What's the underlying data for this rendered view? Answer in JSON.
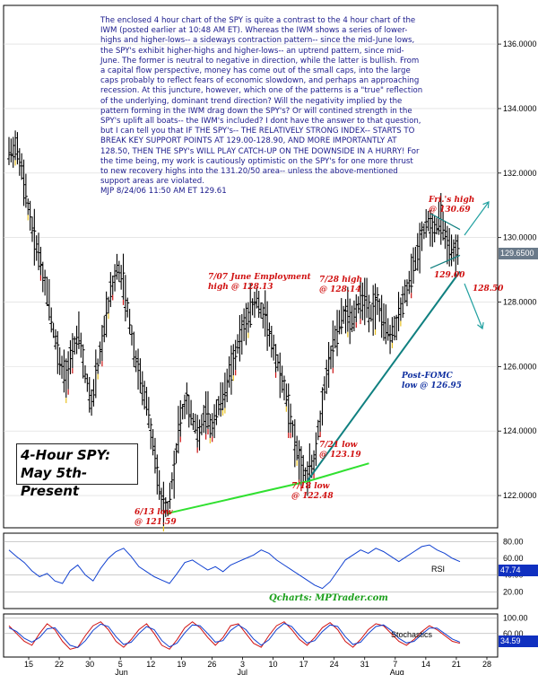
{
  "commentary": "The enclosed 4 hour chart of the SPY is quite a contrast to the 4 hour chart of the IWM (posted earlier at 10:48 AM ET). Whereas the IWM shows a series of lower-highs and higher-lows-- a sideways contraction pattern-- since the mid-June lows, the SPY's exhibit higher-highs and higher-lows-- an uptrend pattern, since mid-June. The former is neutral to negative in direction, while the latter is bullish. From a capital flow perspective, money has come out of the small caps, into the large caps probably to reflect fears of economic slowdown, and perhaps an approaching recession. At this juncture, however, which one of the patterns is a \"true\" reflection of the underlying, dominant trend direction? Will the negativity implied by the pattern forming in the IWM drag down the SPY's? Or will contined strength in the SPY's uplift all boats-- the IWM's included? I dont have the answer to that question, but I can tell you that IF THE SPY's-- THE RELATIVELY STRONG INDEX-- STARTS TO BREAK KEY SUPPORT POINTS AT 129.00-128.90, AND MORE IMPORTANTLY AT 128.50, THEN THE SPY's WILL PLAY CATCH-UP ON THE DOWNSIDE IN A HURRY! For the time being, my work is cautiously optimistic on the SPY's for one more thrust to new recovery highs into the 131.20/50 area-- unless the above-mentioned support areas are violated.",
  "signature": "MJP  8/24/06  11:50 AM ET  129.61",
  "title_line1": "4-Hour SPY:",
  "title_line2": "May 5th-Present",
  "watermark": "Qcharts: MPTrader.com",
  "annotations": {
    "june13": [
      "6/13 low",
      "@ 121.59"
    ],
    "june_employment": [
      "7/07 June Employment",
      "high @ 128.13"
    ],
    "july28": [
      "7/28 high",
      "@ 128.14"
    ],
    "july21": [
      "7/21 low",
      "@ 123.19"
    ],
    "july18": [
      "7/18 low",
      "@ 122.48"
    ],
    "fomc": [
      "Post-FOMC",
      "low @ 126.95"
    ],
    "fri_high": [
      "Fri.'s high",
      "@ 130.69"
    ],
    "support1": "129.00",
    "support2": "128.50",
    "rsi_label": "RSI",
    "stoch_label": "Stochastics"
  },
  "colors": {
    "candle": "#000000",
    "down_tick": "#cc1010",
    "up_tick": "#e8c020",
    "trend_green": "#30e030",
    "trend_teal": "#108080",
    "arrow": "#20a0a0",
    "rsi": "#1040d0",
    "stoch_fast": "#d01010",
    "stoch_slow": "#1040d0",
    "last_price_bg": "#6a7a8a",
    "last_value_bg": "#1030c0"
  },
  "chart_data": {
    "type": "line",
    "price_axis": {
      "ylim": [
        121.0,
        137.2
      ],
      "ticks": [
        "136.0000",
        "134.0000",
        "132.0000",
        "130.0000",
        "128.0000",
        "126.0000",
        "124.0000",
        "122.0000"
      ],
      "tick_values": [
        136,
        134,
        132,
        130,
        128,
        126,
        124,
        122
      ],
      "last_price": "129.6500"
    },
    "x_axis": {
      "labels": [
        "15",
        "22",
        "30",
        "5",
        "12",
        "19",
        "26",
        "3",
        "10",
        "17",
        "24",
        "31",
        "7",
        "14",
        "21",
        "28"
      ],
      "month_labels": [
        "Jun",
        "Jul",
        "Aug"
      ]
    },
    "price_path": {
      "name": "SPY",
      "points": [
        [
          0,
          132.6
        ],
        [
          3,
          132.8
        ],
        [
          6,
          132.3
        ],
        [
          9,
          131.0
        ],
        [
          12,
          130.0
        ],
        [
          15,
          129.2
        ],
        [
          18,
          128.3
        ],
        [
          21,
          127.1
        ],
        [
          24,
          126.3
        ],
        [
          27,
          125.6
        ],
        [
          30,
          126.5
        ],
        [
          33,
          127.0
        ],
        [
          36,
          125.8
        ],
        [
          39,
          124.9
        ],
        [
          42,
          126.0
        ],
        [
          45,
          127.2
        ],
        [
          48,
          128.3
        ],
        [
          51,
          129.1
        ],
        [
          54,
          128.6
        ],
        [
          57,
          127.4
        ],
        [
          60,
          126.2
        ],
        [
          63,
          125.4
        ],
        [
          66,
          124.5
        ],
        [
          69,
          123.2
        ],
        [
          72,
          122.0
        ],
        [
          75,
          121.6
        ],
        [
          78,
          122.8
        ],
        [
          81,
          124.4
        ],
        [
          84,
          125.0
        ],
        [
          87,
          124.3
        ],
        [
          90,
          123.9
        ],
        [
          93,
          124.6
        ],
        [
          96,
          124.1
        ],
        [
          99,
          124.8
        ],
        [
          102,
          125.3
        ],
        [
          105,
          125.9
        ],
        [
          108,
          126.7
        ],
        [
          111,
          127.2
        ],
        [
          114,
          127.7
        ],
        [
          117,
          128.1
        ],
        [
          120,
          127.6
        ],
        [
          123,
          127.1
        ],
        [
          126,
          126.3
        ],
        [
          129,
          125.6
        ],
        [
          132,
          124.8
        ],
        [
          135,
          123.8
        ],
        [
          138,
          123.0
        ],
        [
          141,
          122.5
        ],
        [
          144,
          123.1
        ],
        [
          147,
          124.4
        ],
        [
          150,
          125.8
        ],
        [
          153,
          126.6
        ],
        [
          156,
          127.3
        ],
        [
          159,
          127.7
        ],
        [
          162,
          127.4
        ],
        [
          165,
          127.9
        ],
        [
          168,
          128.1
        ],
        [
          171,
          127.6
        ],
        [
          174,
          128.0
        ],
        [
          177,
          127.5
        ],
        [
          180,
          126.9
        ],
        [
          183,
          127.3
        ],
        [
          186,
          128.0
        ],
        [
          189,
          128.6
        ],
        [
          192,
          129.3
        ],
        [
          195,
          130.1
        ],
        [
          198,
          130.5
        ],
        [
          201,
          130.2
        ],
        [
          204,
          130.6
        ],
        [
          207,
          129.9
        ],
        [
          210,
          129.5
        ],
        [
          213,
          129.7
        ]
      ],
      "x_range": [
        0,
        213
      ]
    },
    "rsi": {
      "ylim": [
        0,
        90
      ],
      "ticks": [
        "80.00",
        "60.00",
        "40.00",
        "20.00"
      ],
      "tick_values": [
        80,
        60,
        40,
        20
      ],
      "last_value": "47.74",
      "values": [
        70,
        62,
        55,
        45,
        38,
        42,
        33,
        30,
        45,
        52,
        40,
        33,
        48,
        60,
        68,
        72,
        62,
        50,
        44,
        38,
        34,
        30,
        42,
        55,
        58,
        52,
        46,
        50,
        44,
        52,
        56,
        60,
        64,
        70,
        66,
        58,
        52,
        46,
        40,
        34,
        28,
        24,
        32,
        45,
        58,
        64,
        70,
        66,
        72,
        68,
        62,
        56,
        62,
        68,
        74,
        76,
        70,
        66,
        60,
        56
      ]
    },
    "stochastics": {
      "ylim": [
        0,
        110
      ],
      "ticks": [
        "100.00",
        "60.00"
      ],
      "tick_values": [
        100,
        60
      ],
      "last_value": "34.59",
      "fast": [
        80,
        60,
        40,
        30,
        60,
        85,
        70,
        40,
        20,
        25,
        55,
        80,
        90,
        70,
        40,
        25,
        45,
        70,
        85,
        60,
        30,
        20,
        45,
        75,
        90,
        75,
        50,
        30,
        50,
        80,
        85,
        60,
        35,
        25,
        55,
        80,
        90,
        70,
        45,
        30,
        50,
        75,
        88,
        70,
        40,
        25,
        45,
        70,
        85,
        80,
        60,
        40,
        30,
        45,
        65,
        80,
        70,
        55,
        40,
        35
      ],
      "slow": [
        75,
        65,
        48,
        38,
        50,
        72,
        75,
        52,
        30,
        24,
        42,
        68,
        84,
        78,
        52,
        32,
        38,
        60,
        78,
        70,
        42,
        26,
        36,
        62,
        82,
        80,
        60,
        38,
        42,
        68,
        82,
        70,
        46,
        30,
        44,
        70,
        86,
        78,
        55,
        36,
        42,
        65,
        82,
        78,
        52,
        32,
        38,
        60,
        78,
        82,
        68,
        48,
        36,
        40,
        58,
        74,
        74,
        60,
        46,
        38
      ]
    }
  }
}
